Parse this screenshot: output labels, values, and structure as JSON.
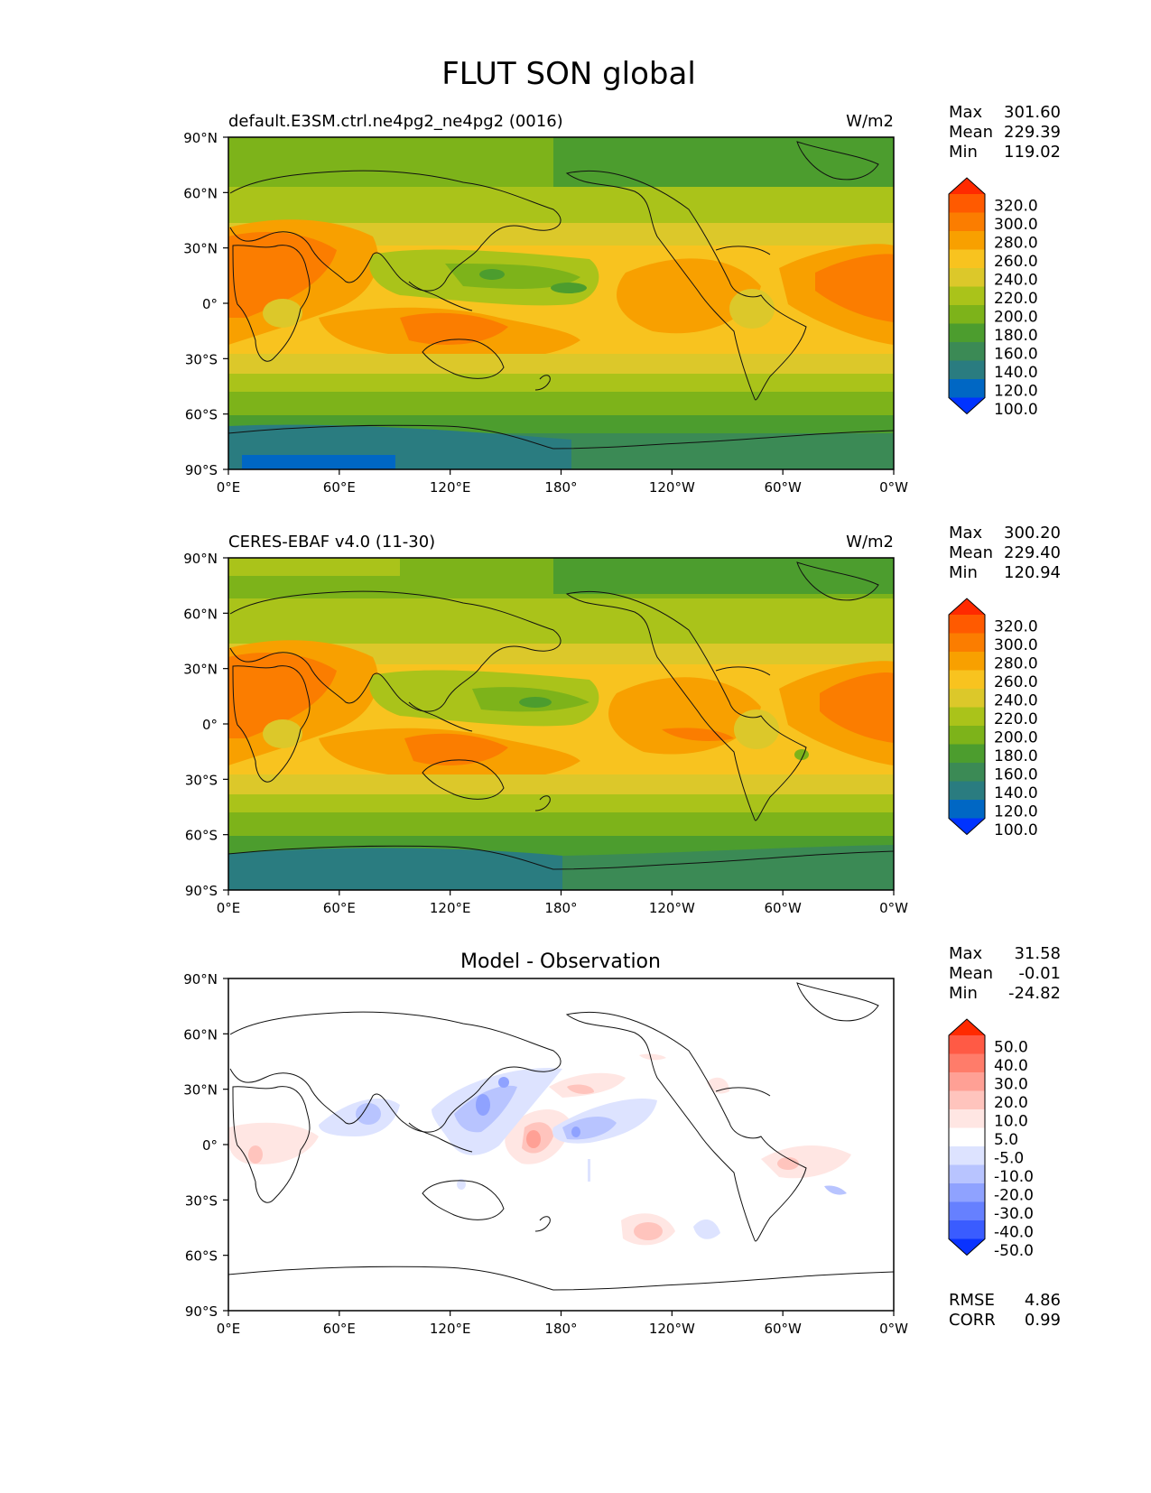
{
  "title": "FLUT SON global",
  "panels": [
    {
      "id": "model",
      "left_title": "default.E3SM.ctrl.ne4pg2_ne4pg2 (0016)",
      "right_title": "W/m2",
      "center_title": "",
      "stats": [
        {
          "label": "Max",
          "value": "301.60"
        },
        {
          "label": "Mean",
          "value": "229.39"
        },
        {
          "label": "Min",
          "value": "119.02"
        }
      ],
      "colorbar_ticks": [
        "320.0",
        "300.0",
        "280.0",
        "260.0",
        "240.0",
        "220.0",
        "200.0",
        "180.0",
        "160.0",
        "140.0",
        "120.0",
        "100.0"
      ],
      "colorbar_colors": [
        "#ff2a00",
        "#ff5a00",
        "#fb7d00",
        "#f8a000",
        "#f8c31f",
        "#dcc82a",
        "#aac31a",
        "#7db31a",
        "#4c9d2e",
        "#3b8a55",
        "#2a7c80",
        "#0067c4",
        "#0033ff"
      ],
      "lat_ticks": [
        "90°N",
        "60°N",
        "30°N",
        "0°",
        "30°S",
        "60°S",
        "90°S"
      ],
      "lon_ticks": [
        "0°E",
        "60°E",
        "120°E",
        "180°",
        "120°W",
        "60°W",
        "0°W"
      ]
    },
    {
      "id": "obs",
      "left_title": "CERES-EBAF v4.0 (11-30)",
      "right_title": "W/m2",
      "center_title": "",
      "stats": [
        {
          "label": "Max",
          "value": "300.20"
        },
        {
          "label": "Mean",
          "value": "229.40"
        },
        {
          "label": "Min",
          "value": "120.94"
        }
      ],
      "colorbar_ticks": [
        "320.0",
        "300.0",
        "280.0",
        "260.0",
        "240.0",
        "220.0",
        "200.0",
        "180.0",
        "160.0",
        "140.0",
        "120.0",
        "100.0"
      ],
      "colorbar_colors": [
        "#ff2a00",
        "#ff5a00",
        "#fb7d00",
        "#f8a000",
        "#f8c31f",
        "#dcc82a",
        "#aac31a",
        "#7db31a",
        "#4c9d2e",
        "#3b8a55",
        "#2a7c80",
        "#0067c4",
        "#0033ff"
      ],
      "lat_ticks": [
        "90°N",
        "60°N",
        "30°N",
        "0°",
        "30°S",
        "60°S",
        "90°S"
      ],
      "lon_ticks": [
        "0°E",
        "60°E",
        "120°E",
        "180°",
        "120°W",
        "60°W",
        "0°W"
      ]
    },
    {
      "id": "diff",
      "left_title": "",
      "right_title": "",
      "center_title": "Model - Observation",
      "stats": [
        {
          "label": "Max",
          "value": "31.58"
        },
        {
          "label": "Mean",
          "value": "-0.01"
        },
        {
          "label": "Min",
          "value": "-24.82"
        }
      ],
      "colorbar_ticks": [
        "50.0",
        "40.0",
        "30.0",
        "20.0",
        "10.0",
        "5.0",
        "-5.0",
        "-10.0",
        "-20.0",
        "-30.0",
        "-40.0",
        "-50.0"
      ],
      "colorbar_colors": [
        "#ff2a00",
        "#ff5a45",
        "#ff7c6a",
        "#ffa095",
        "#ffc4bd",
        "#ffe6e3",
        "#ffffff",
        "#dde3ff",
        "#b8c4ff",
        "#8fa2ff",
        "#6680ff",
        "#3a5cff",
        "#0a33ff"
      ],
      "lat_ticks": [
        "90°N",
        "60°N",
        "30°N",
        "0°",
        "30°S",
        "60°S",
        "90°S"
      ],
      "lon_ticks": [
        "0°E",
        "60°E",
        "120°E",
        "180°",
        "120°W",
        "60°W",
        "0°W"
      ],
      "extra_stats": [
        {
          "label": "RMSE",
          "value": "4.86"
        },
        {
          "label": "CORR",
          "value": "0.99"
        }
      ]
    }
  ]
}
